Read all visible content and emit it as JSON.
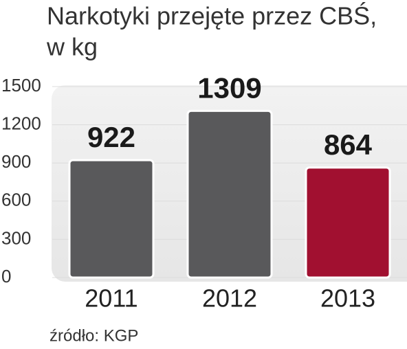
{
  "chart_data": {
    "type": "bar",
    "title": [
      "Narkotyki przejęte przez CBŚ,",
      "w kg"
    ],
    "categories": [
      "2011",
      "2012",
      "2013"
    ],
    "values": [
      922,
      1309,
      864
    ],
    "colors": [
      "#59595b",
      "#59595b",
      "#a11030"
    ],
    "ylim": [
      0,
      1500
    ],
    "yticks": [
      0,
      300,
      600,
      900,
      1200,
      1500
    ],
    "grid": true,
    "source": "źródło: KGP"
  }
}
